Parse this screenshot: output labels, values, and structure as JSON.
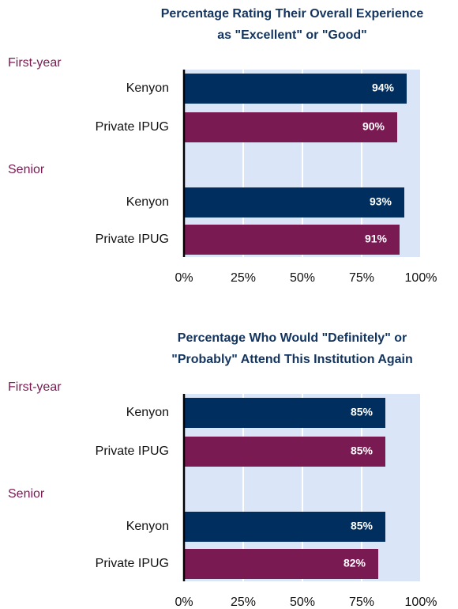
{
  "chart_data": [
    {
      "type": "bar",
      "title": [
        "Percentage Rating Their Overall Experience",
        "as \"Excellent\" or \"Good\""
      ],
      "categories": [
        "First-year",
        "Senior"
      ],
      "series": [
        {
          "name": "Kenyon",
          "color": "#002f5f",
          "values": [
            94,
            93
          ],
          "value_labels": [
            "94%",
            "93%"
          ]
        },
        {
          "name": "Private IPUG",
          "color": "#7a1a52",
          "values": [
            90,
            91
          ],
          "value_labels": [
            "90%",
            "91%"
          ]
        }
      ],
      "xlim": [
        0,
        100
      ],
      "xticks": [
        {
          "value": 0,
          "label": "0%"
        },
        {
          "value": 25,
          "label": "25%"
        },
        {
          "value": 50,
          "label": "50%"
        },
        {
          "value": 75,
          "label": "75%"
        },
        {
          "value": 100,
          "label": "100%"
        }
      ],
      "grid": true,
      "background": "#dae5f7"
    },
    {
      "type": "bar",
      "title": [
        "Percentage Who Would \"Definitely\" or",
        "\"Probably\" Attend This Institution Again"
      ],
      "categories": [
        "First-year",
        "Senior"
      ],
      "series": [
        {
          "name": "Kenyon",
          "color": "#002f5f",
          "values": [
            85,
            85
          ],
          "value_labels": [
            "85%",
            "85%"
          ]
        },
        {
          "name": "Private IPUG",
          "color": "#7a1a52",
          "values": [
            85,
            82
          ],
          "value_labels": [
            "85%",
            "82%"
          ]
        }
      ],
      "xlim": [
        0,
        100
      ],
      "xticks": [
        {
          "value": 0,
          "label": "0%"
        },
        {
          "value": 25,
          "label": "25%"
        },
        {
          "value": 50,
          "label": "50%"
        },
        {
          "value": 75,
          "label": "75%"
        },
        {
          "value": 100,
          "label": "100%"
        }
      ],
      "grid": true,
      "background": "#dae5f7"
    }
  ]
}
